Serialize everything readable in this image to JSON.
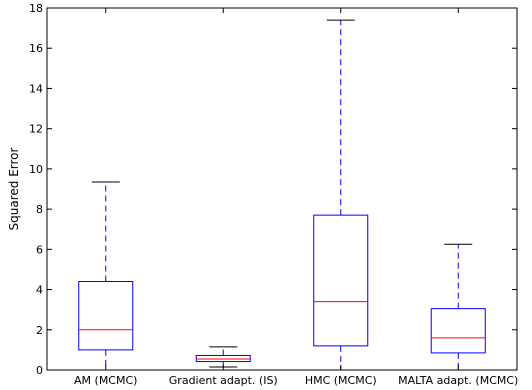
{
  "chart_data": {
    "type": "box",
    "title": "",
    "xlabel": "",
    "ylabel": "Squared Error",
    "ylim": [
      0,
      18
    ],
    "yticks": [
      "0",
      "2",
      "4",
      "6",
      "8",
      "10",
      "12",
      "14",
      "16",
      "18"
    ],
    "categories": [
      "AM (MCMC)",
      "Gradient adapt. (IS)",
      "HMC (MCMC)",
      "MALTA adapt. (MCMC)"
    ],
    "boxes": [
      {
        "whisker_low": 0.0,
        "q1": 1.0,
        "median": 2.0,
        "q3": 4.4,
        "whisker_high": 9.35
      },
      {
        "whisker_low": 0.15,
        "q1": 0.42,
        "median": 0.55,
        "q3": 0.72,
        "whisker_high": 1.15
      },
      {
        "whisker_low": 0.0,
        "q1": 1.2,
        "median": 3.4,
        "q3": 7.7,
        "whisker_high": 17.4
      },
      {
        "whisker_low": 0.0,
        "q1": 0.85,
        "median": 1.6,
        "q3": 3.05,
        "whisker_high": 6.25
      }
    ],
    "box_color": "#0000ff",
    "median_color": "#ff0000",
    "grid": false
  }
}
